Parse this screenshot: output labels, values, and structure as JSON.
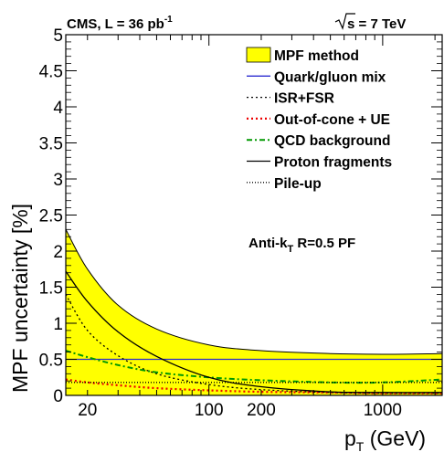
{
  "chart_data": {
    "type": "line",
    "header_left": {
      "text": "CMS, L = 36 pb",
      "sup": "-1"
    },
    "header_right": {
      "root": "s",
      "rest": " = 7 TeV"
    },
    "xlabel": {
      "main": "p",
      "sub": "T",
      "rest": " (GeV)"
    },
    "ylabel": "MPF uncertainty [%]",
    "annotation": {
      "pre": "Anti-k",
      "sub": "T",
      "post": " R=0.5 PF"
    },
    "x_scale": "log",
    "xlim": [
      15,
      2200
    ],
    "ylim": [
      0,
      5
    ],
    "x_ticks": [
      {
        "value": 20,
        "label": "20"
      },
      {
        "value": 100,
        "label": "100"
      },
      {
        "value": 200,
        "label": "200"
      },
      {
        "value": 1000,
        "label": "1000"
      }
    ],
    "y_ticks": [
      {
        "value": 0,
        "label": "0"
      },
      {
        "value": 0.5,
        "label": "0.5"
      },
      {
        "value": 1,
        "label": "1"
      },
      {
        "value": 1.5,
        "label": "1.5"
      },
      {
        "value": 2,
        "label": "2"
      },
      {
        "value": 2.5,
        "label": "2.5"
      },
      {
        "value": 3,
        "label": "3"
      },
      {
        "value": 3.5,
        "label": "3.5"
      },
      {
        "value": 4,
        "label": "4"
      },
      {
        "value": 4.5,
        "label": "4.5"
      },
      {
        "value": 5,
        "label": "5"
      }
    ],
    "grid": false,
    "legend_position": "top-right",
    "band": {
      "name": "MPF method",
      "fill": "#ffff00",
      "x": [
        15,
        20,
        30,
        50,
        100,
        200,
        500,
        1000,
        2200
      ],
      "values": [
        2.3,
        1.75,
        1.25,
        0.92,
        0.7,
        0.62,
        0.58,
        0.57,
        0.58
      ]
    },
    "series": [
      {
        "name": "Quark/gluon mix",
        "color": "#2b2bd0",
        "dash": "solid",
        "x": [
          15,
          2200
        ],
        "values": [
          0.5,
          0.5
        ]
      },
      {
        "name": "ISR+FSR",
        "color": "#000000",
        "dash": "dotted",
        "x": [
          15,
          20,
          30,
          50,
          100,
          200,
          500,
          1000,
          2200
        ],
        "values": [
          1.4,
          0.9,
          0.55,
          0.3,
          0.15,
          0.08,
          0.04,
          0.03,
          0.03
        ]
      },
      {
        "name": "Out-of-cone + UE",
        "color": "#ee0000",
        "dash": "dotted",
        "x": [
          15,
          20,
          30,
          50,
          100,
          200,
          500,
          1000,
          2200
        ],
        "values": [
          0.22,
          0.18,
          0.14,
          0.1,
          0.07,
          0.05,
          0.04,
          0.03,
          0.03
        ]
      },
      {
        "name": "QCD background",
        "color": "#009900",
        "dash": "dashdot",
        "x": [
          15,
          20,
          30,
          50,
          100,
          200,
          500,
          1000,
          2200
        ],
        "values": [
          0.62,
          0.53,
          0.42,
          0.32,
          0.25,
          0.21,
          0.18,
          0.18,
          0.22
        ]
      },
      {
        "name": "Proton fragments",
        "color": "#000000",
        "dash": "solid",
        "x": [
          15,
          20,
          30,
          50,
          100,
          200,
          500,
          1000,
          2200
        ],
        "values": [
          1.72,
          1.3,
          0.88,
          0.54,
          0.25,
          0.12,
          0.05,
          0.04,
          0.04
        ]
      },
      {
        "name": "Pile-up",
        "color": "#000000",
        "dash": "finedot",
        "x": [
          15,
          2200
        ],
        "values": [
          0.18,
          0.18
        ]
      }
    ]
  }
}
